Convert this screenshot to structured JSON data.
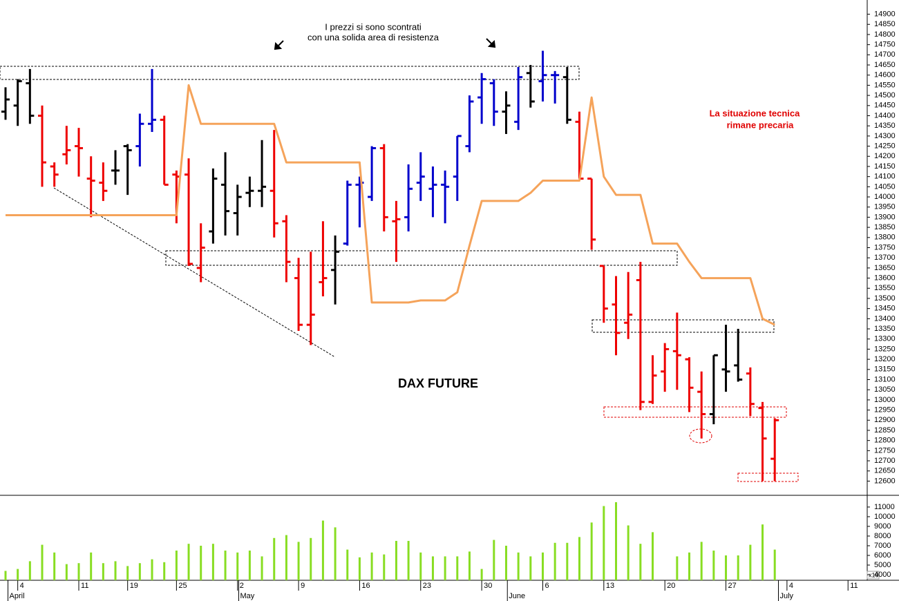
{
  "chart_data": [
    {
      "type": "ohlc",
      "title": "DAX FUTURE",
      "annotations": [
        "I prezzi si sono scontrati",
        "con una solida area di resistenza",
        "La situazione tecnica",
        "rimane precaria"
      ],
      "open": [
        14420,
        14450,
        14560,
        14400,
        14150,
        14210,
        14250,
        14090,
        14070,
        14130,
        14250,
        14250,
        14360,
        14380,
        14110,
        14110,
        13650,
        13830,
        14060,
        13920,
        14020,
        14030,
        14030,
        13880,
        13600,
        13370,
        13580,
        13640,
        13770,
        14060,
        14000,
        14240,
        13880,
        13900,
        14070,
        14040,
        14060,
        14100,
        14250,
        14490,
        14560,
        14420,
        14370,
        14610,
        14570,
        14600,
        14590,
        14370,
        14090,
        13660,
        13470,
        13380,
        13590,
        12990,
        13140,
        13240,
        13200,
        13040,
        12930,
        13150,
        13170,
        13130,
        12960,
        12710,
        null,
        null,
        null,
        null,
        null,
        null,
        null,
        null,
        null
      ],
      "high": [
        14540,
        14580,
        14630,
        14450,
        14170,
        14350,
        14340,
        14200,
        14170,
        14230,
        14260,
        14410,
        14630,
        14400,
        14130,
        14190,
        13870,
        14140,
        14220,
        14060,
        14100,
        14280,
        14330,
        13910,
        13700,
        13730,
        13880,
        13810,
        14080,
        14100,
        14250,
        14260,
        13980,
        14160,
        14220,
        14150,
        14130,
        14300,
        14500,
        14610,
        14580,
        14520,
        14640,
        14650,
        14720,
        14620,
        14640,
        14420,
        14090,
        13660,
        13610,
        13630,
        13680,
        13220,
        13280,
        13430,
        13210,
        13140,
        13220,
        13370,
        13350,
        13160,
        12990,
        12910,
        null,
        null,
        null,
        null,
        null,
        null,
        null,
        null,
        null
      ],
      "low": [
        14380,
        14350,
        14360,
        14050,
        14050,
        14160,
        14100,
        13900,
        13980,
        14060,
        14010,
        14150,
        14320,
        14060,
        13870,
        13660,
        13580,
        13770,
        13810,
        13810,
        13950,
        13950,
        13800,
        13580,
        13340,
        13270,
        13510,
        13470,
        13760,
        13850,
        13980,
        13830,
        13680,
        13830,
        13980,
        13900,
        13870,
        13980,
        14220,
        14360,
        14350,
        14310,
        14330,
        14440,
        14470,
        14460,
        14360,
        14090,
        13740,
        13380,
        13220,
        13300,
        12950,
        12980,
        13040,
        13050,
        12940,
        12810,
        12880,
        13040,
        13090,
        12920,
        12600,
        12600,
        null,
        null,
        null,
        null,
        null,
        null,
        null,
        null,
        null
      ],
      "close": [
        14480,
        14570,
        14400,
        14170,
        14110,
        14230,
        14240,
        14080,
        14030,
        14130,
        14230,
        14360,
        14380,
        14060,
        14100,
        13670,
        13750,
        14090,
        13930,
        14000,
        14030,
        14050,
        13870,
        13680,
        13370,
        13420,
        13600,
        13730,
        14060,
        14070,
        14240,
        13900,
        13890,
        14040,
        14100,
        14060,
        14050,
        14300,
        14470,
        14580,
        14420,
        14450,
        14590,
        14470,
        14600,
        14600,
        14380,
        14090,
        13790,
        13450,
        13330,
        13420,
        12990,
        13120,
        13250,
        13220,
        13060,
        12930,
        13220,
        13140,
        13100,
        12980,
        12810,
        12900,
        null,
        null,
        null,
        null,
        null,
        null,
        null,
        null,
        null
      ],
      "colors": [
        "#000000",
        "#000000",
        "#000000",
        "#ee0000",
        "#ee0000",
        "#ee0000",
        "#ee0000",
        "#ee0000",
        "#ee0000",
        "#000000",
        "#000000",
        "#0000cc",
        "#0000cc",
        "#ee0000",
        "#ee0000",
        "#ee0000",
        "#ee0000",
        "#000000",
        "#000000",
        "#000000",
        "#000000",
        "#000000",
        "#ee0000",
        "#ee0000",
        "#ee0000",
        "#ee0000",
        "#ee0000",
        "#000000",
        "#0000cc",
        "#0000cc",
        "#0000cc",
        "#ee0000",
        "#ee0000",
        "#0000cc",
        "#0000cc",
        "#0000cc",
        "#0000cc",
        "#0000cc",
        "#0000cc",
        "#0000cc",
        "#0000cc",
        "#000000",
        "#0000cc",
        "#000000",
        "#0000cc",
        "#0000cc",
        "#000000",
        "#ee0000",
        "#ee0000",
        "#ee0000",
        "#ee0000",
        "#ee0000",
        "#ee0000",
        "#ee0000",
        "#ee0000",
        "#ee0000",
        "#ee0000",
        "#ee0000",
        "#000000",
        "#000000",
        "#000000",
        "#ee0000",
        "#ee0000",
        "#ee0000",
        null,
        null,
        null,
        null,
        null,
        null,
        null,
        null,
        null
      ],
      "overlay": {
        "color": "#f5a35a",
        "values": [
          13910,
          13910,
          13910,
          13910,
          13910,
          13910,
          13910,
          13910,
          13910,
          13910,
          13910,
          13910,
          13910,
          13910,
          13910,
          14550,
          14360,
          14360,
          14360,
          14360,
          14360,
          14360,
          14360,
          14170,
          14170,
          14170,
          14170,
          14170,
          14170,
          14170,
          13480,
          13480,
          13480,
          13480,
          13490,
          13490,
          13490,
          13530,
          13760,
          13980,
          13980,
          13980,
          13980,
          14020,
          14080,
          14080,
          14080,
          14080,
          14490,
          14100,
          14010,
          14010,
          14010,
          13770,
          13770,
          13770,
          13680,
          13600,
          13600,
          13600,
          13600,
          13600,
          13400,
          13370,
          null,
          null,
          null,
          null,
          null,
          null,
          null,
          null,
          null
        ]
      },
      "ylim": [
        12530,
        14970
      ],
      "yticks": [
        12600,
        12650,
        12700,
        12750,
        12800,
        12850,
        12900,
        12950,
        13000,
        13050,
        13100,
        13150,
        13200,
        13250,
        13300,
        13350,
        13400,
        13450,
        13500,
        13550,
        13600,
        13650,
        13700,
        13750,
        13800,
        13850,
        13900,
        13950,
        14000,
        14050,
        14100,
        14150,
        14200,
        14250,
        14300,
        14350,
        14400,
        14450,
        14500,
        14550,
        14600,
        14650,
        14700,
        14750,
        14800,
        14850,
        14900
      ]
    },
    {
      "type": "bar",
      "annotation": "x10",
      "color": "#88dd22",
      "categories": [
        null,
        "4",
        null,
        null,
        null,
        null,
        "11",
        null,
        null,
        null,
        "19",
        null,
        null,
        null,
        "25",
        null,
        null,
        null,
        null,
        "2",
        null,
        null,
        null,
        null,
        "9",
        null,
        null,
        null,
        null,
        "16",
        null,
        null,
        null,
        null,
        "23",
        null,
        null,
        null,
        null,
        "30",
        null,
        null,
        null,
        null,
        "6",
        null,
        null,
        null,
        null,
        "13",
        null,
        null,
        null,
        null,
        "20",
        null,
        null,
        null,
        null,
        "27",
        null,
        null,
        null,
        null,
        "4",
        null,
        null,
        null,
        null,
        "11",
        null,
        null,
        null
      ],
      "months": [
        "April",
        "May",
        "June",
        "July"
      ],
      "values": [
        4400,
        4600,
        5400,
        7100,
        6300,
        5100,
        5200,
        6300,
        5200,
        5400,
        4900,
        5200,
        5600,
        5300,
        6500,
        7200,
        7000,
        7200,
        6500,
        6300,
        6500,
        5900,
        7800,
        8100,
        7400,
        7800,
        9600,
        8900,
        6600,
        5800,
        6300,
        6100,
        7500,
        7500,
        6300,
        5900,
        5900,
        5900,
        6400,
        4600,
        7600,
        7000,
        6300,
        5900,
        6300,
        7300,
        7300,
        7900,
        9400,
        11100,
        11500,
        9100,
        7200,
        8400,
        null,
        5900,
        6300,
        7400,
        6500,
        6000,
        6000,
        7100,
        9200,
        6600,
        null,
        null,
        null,
        null,
        null,
        null,
        null,
        null,
        null
      ],
      "ylim": [
        3430,
        12210
      ],
      "yticks": [
        4000,
        5000,
        6000,
        7000,
        8000,
        9000,
        10000,
        11000
      ]
    }
  ]
}
